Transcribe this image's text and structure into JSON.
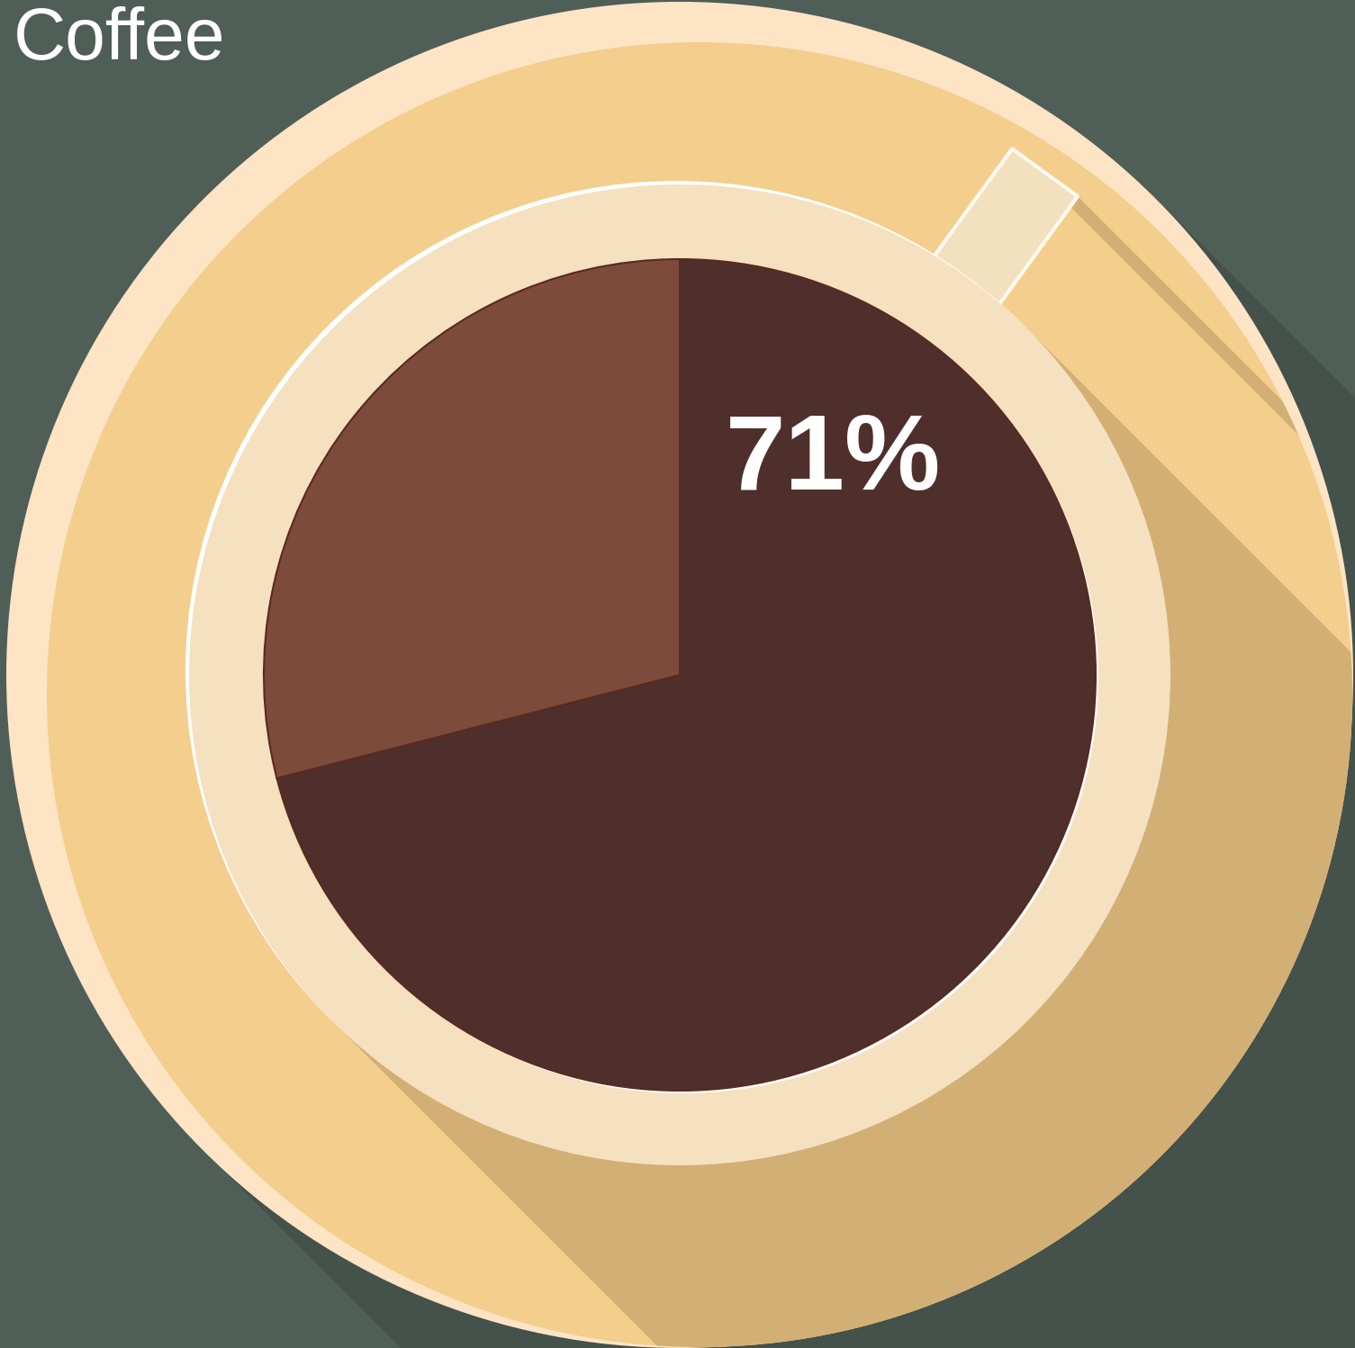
{
  "chart_data": {
    "type": "pie",
    "title": "Coffee",
    "values": [
      71,
      29
    ],
    "value_labels": [
      "71%",
      null
    ],
    "colors": [
      "#4f2f2b",
      "#7d4b3b"
    ],
    "data_labels": true
  }
}
